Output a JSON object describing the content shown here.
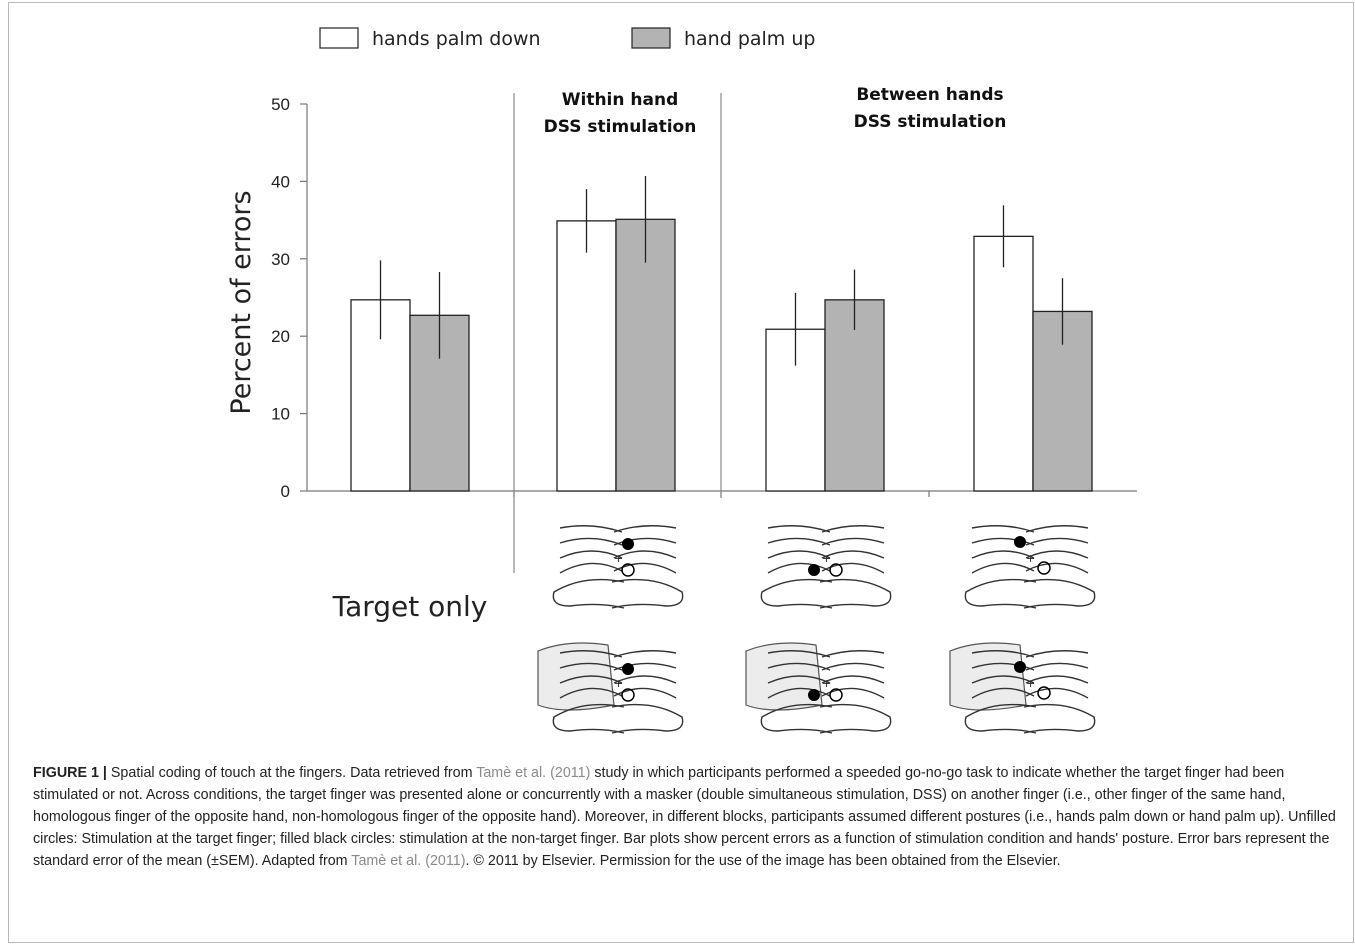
{
  "chart_data": {
    "type": "bar",
    "ylabel": "Percent of errors",
    "ylim": [
      0,
      50
    ],
    "yticks": [
      "0",
      "10",
      "20",
      "30",
      "40",
      "50"
    ],
    "legend": [
      {
        "label": "hands palm down",
        "color": "#ffffff"
      },
      {
        "label": "hand palm up",
        "color": "#b3b3b3"
      }
    ],
    "legend_position": "top",
    "grid": false,
    "groups": [
      {
        "label": [
          "Target only"
        ]
      },
      {
        "label": [
          "Within hand",
          "DSS stimulation"
        ]
      },
      {
        "label": [
          "Between hands",
          "DSS stimulation"
        ]
      },
      {
        "label": []
      }
    ],
    "series": [
      {
        "name": "hands palm down",
        "color": "#ffffff",
        "values": [
          24.7,
          34.9,
          20.9,
          32.9
        ],
        "errors": [
          5.1,
          4.1,
          4.7,
          4.0
        ]
      },
      {
        "name": "hand palm up",
        "color": "#b3b3b3",
        "values": [
          22.7,
          35.1,
          24.7,
          23.2
        ],
        "errors": [
          5.6,
          5.6,
          3.9,
          4.3
        ]
      }
    ]
  },
  "caption": {
    "lead": "FIGURE 1 |",
    "part1": " Spatial coding of touch at the fingers. Data retrieved from ",
    "cite1": "Tamè et al. (2011)",
    "part2": " study in which participants performed a speeded go-no-go task to indicate whether the target finger had been stimulated or not. Across conditions, the target finger was presented alone or concurrently with a masker (double simultaneous stimulation, DSS) on another finger (i.e., other finger of the same hand, homologous finger of the opposite hand, non-homologous finger of the opposite hand). Moreover, in different blocks, participants assumed different postures (i.e., hands palm down or hand palm up). Unfilled circles: Stimulation at the target finger; filled black circles: stimulation at the non-target finger. Bar plots show percent errors as a function of stimulation condition and hands' posture. Error bars represent the standard error of the mean (±SEM). Adapted from ",
    "cite2": "Tamè et al. (2011)",
    "part3": ". © 2011 by Elsevier. Permission for the use of the image has been obtained from the Elsevier."
  }
}
